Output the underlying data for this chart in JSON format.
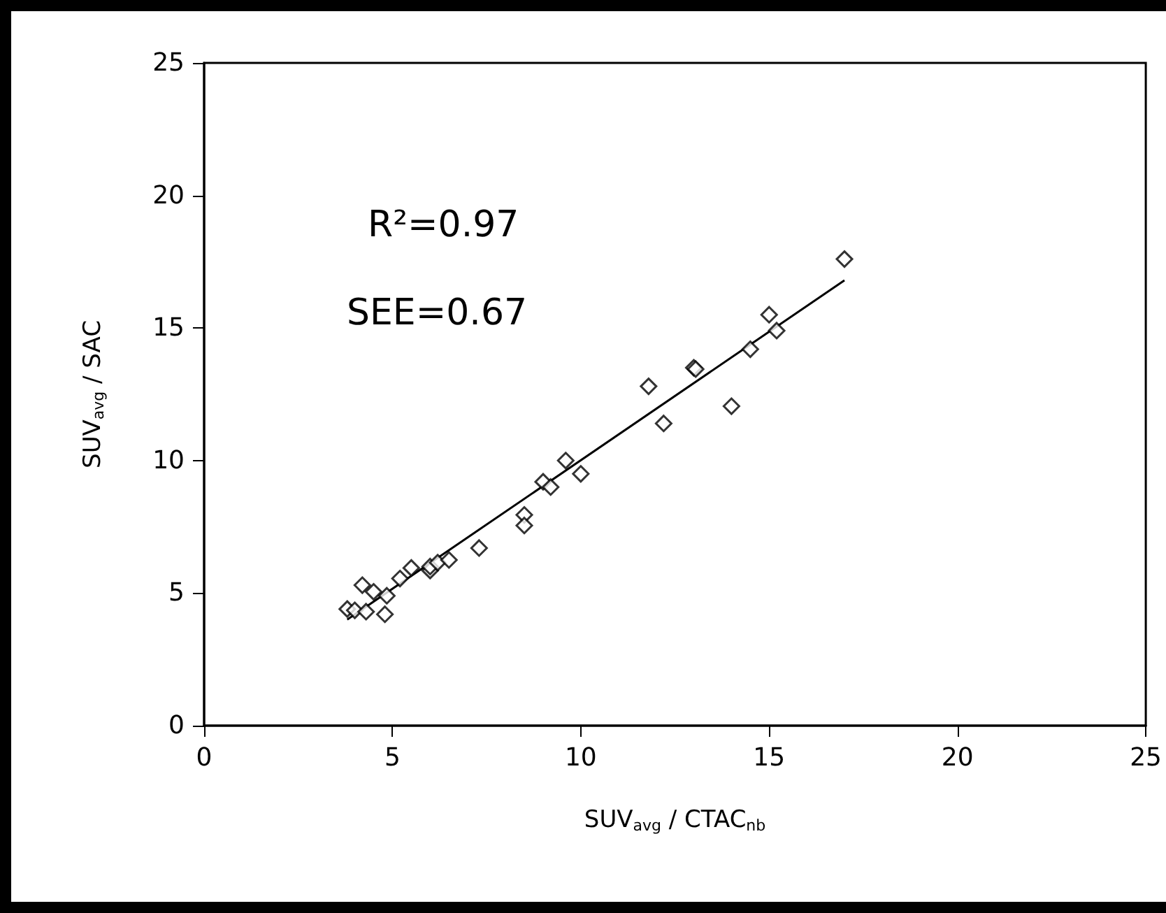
{
  "chart_data": {
    "type": "scatter",
    "xlabel": "SUV$_{avg}$ / CTAC$_{nb}$",
    "ylabel": "SUV$_{avg}$ / SAC",
    "annotations": [
      "R²=0.97",
      "SEE=0.67"
    ],
    "xlim": [
      0,
      25
    ],
    "ylim": [
      0,
      25
    ],
    "xticks": [
      0,
      5,
      10,
      15,
      20,
      25
    ],
    "yticks": [
      0,
      5,
      10,
      15,
      20,
      25
    ],
    "grid": false,
    "series": [
      {
        "color": "#000000",
        "marker": "diamond",
        "x": [
          3.8,
          4.0,
          4.2,
          4.3,
          4.5,
          4.8,
          4.85,
          5.2,
          5.5,
          6.0,
          6.0,
          6.2,
          6.5,
          7.3,
          8.5,
          8.5,
          9.0,
          9.2,
          9.6,
          10.0,
          11.8,
          12.2,
          13.0,
          13.05,
          14.0,
          14.5,
          15.0,
          15.2,
          17.0
        ],
        "values": [
          4.4,
          4.35,
          5.3,
          4.3,
          5.05,
          4.2,
          4.9,
          5.55,
          5.95,
          5.85,
          6.0,
          6.15,
          6.25,
          6.7,
          7.95,
          7.55,
          9.2,
          9.0,
          10.0,
          9.5,
          12.8,
          11.4,
          13.5,
          13.45,
          12.05,
          14.2,
          15.5,
          14.9,
          17.6
        ]
      },
      {
        "type": "line",
        "color": "#000000",
        "marker": "none",
        "line_style": "solid",
        "x": [
          3.8,
          17.0
        ],
        "values": [
          4.0,
          16.8
        ]
      }
    ]
  }
}
